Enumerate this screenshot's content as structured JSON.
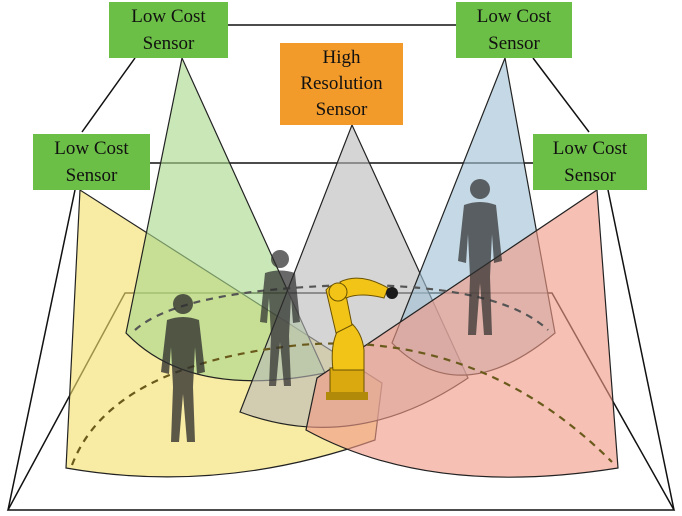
{
  "labels": {
    "low_cost_top_left": "Low Cost\nSensor",
    "low_cost_top_right": "Low Cost\nSensor",
    "low_cost_mid_left": "Low Cost\nSensor",
    "low_cost_mid_right": "Low Cost\nSensor",
    "high_resolution": "High\nResolution\nSensor"
  },
  "colors": {
    "low_cost_box": "#6cbf46",
    "high_resolution_box": "#f29a2a",
    "cone_yellow": "#f3df6b",
    "cone_green": "#a8d88a",
    "cone_gray": "#b9b9b9",
    "cone_blue": "#9fc1d5",
    "cone_red": "#f19a86",
    "robot": "#f2c418",
    "human_silhouette": "#2e2e2e"
  },
  "icons": {
    "human": "human-silhouette-icon",
    "robot": "industrial-robot-arm-icon"
  }
}
